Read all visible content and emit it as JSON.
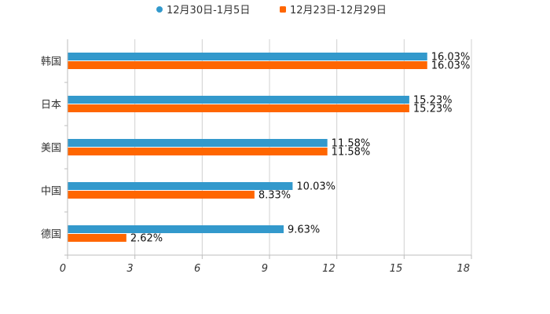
{
  "chart_data": {
    "type": "bar",
    "orientation": "horizontal",
    "categories": [
      "韩国",
      "日本",
      "美国",
      "中国",
      "德国"
    ],
    "series": [
      {
        "name": "12月30日-1月5日",
        "color": "#3399cc",
        "values": [
          16.03,
          15.23,
          11.58,
          10.03,
          9.63
        ]
      },
      {
        "name": "12月23日-12月29日",
        "color": "#ff6600",
        "values": [
          16.03,
          15.23,
          11.58,
          8.33,
          2.62
        ]
      }
    ],
    "value_suffix": "%",
    "xlim": [
      0,
      18
    ],
    "xticks": [
      0,
      3,
      6,
      9,
      12,
      15,
      18
    ],
    "grid": true,
    "legend_position": "top-center"
  }
}
